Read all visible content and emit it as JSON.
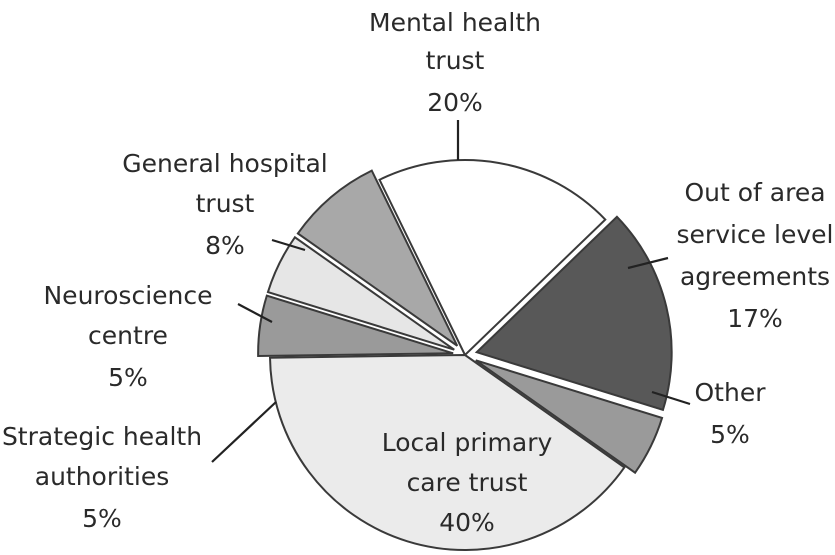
{
  "chart_data": {
    "type": "pie",
    "title": "",
    "slices": [
      {
        "name": "Mental health trust",
        "label_lines": [
          "Mental health",
          "trust"
        ],
        "value": 20,
        "value_label": "20%",
        "color": "#ffffff",
        "exploded": false
      },
      {
        "name": "Out of area service level agreements",
        "label_lines": [
          "Out of area",
          "service level",
          "agreements"
        ],
        "value": 17,
        "value_label": "17%",
        "color": "#585858",
        "exploded": true
      },
      {
        "name": "Other",
        "label_lines": [
          "Other"
        ],
        "value": 5,
        "value_label": "5%",
        "color": "#9a9a9a",
        "exploded": true
      },
      {
        "name": "Local primary care trust",
        "label_lines": [
          "Local primary",
          "care trust"
        ],
        "value": 40,
        "value_label": "40%",
        "color": "#ebebeb",
        "exploded": false
      },
      {
        "name": "Strategic health authorities",
        "label_lines": [
          "Strategic health",
          "authorities"
        ],
        "value": 5,
        "value_label": "5%",
        "color": "#9a9a9a",
        "exploded": true
      },
      {
        "name": "Neuroscience centre",
        "label_lines": [
          "Neuroscience",
          "centre"
        ],
        "value": 5,
        "value_label": "5%",
        "color": "#e6e6e6",
        "exploded": true
      },
      {
        "name": "General hospital trust",
        "label_lines": [
          "General hospital",
          "trust"
        ],
        "value": 8,
        "value_label": "8%",
        "color": "#a8a8a8",
        "exploded": true
      }
    ]
  }
}
